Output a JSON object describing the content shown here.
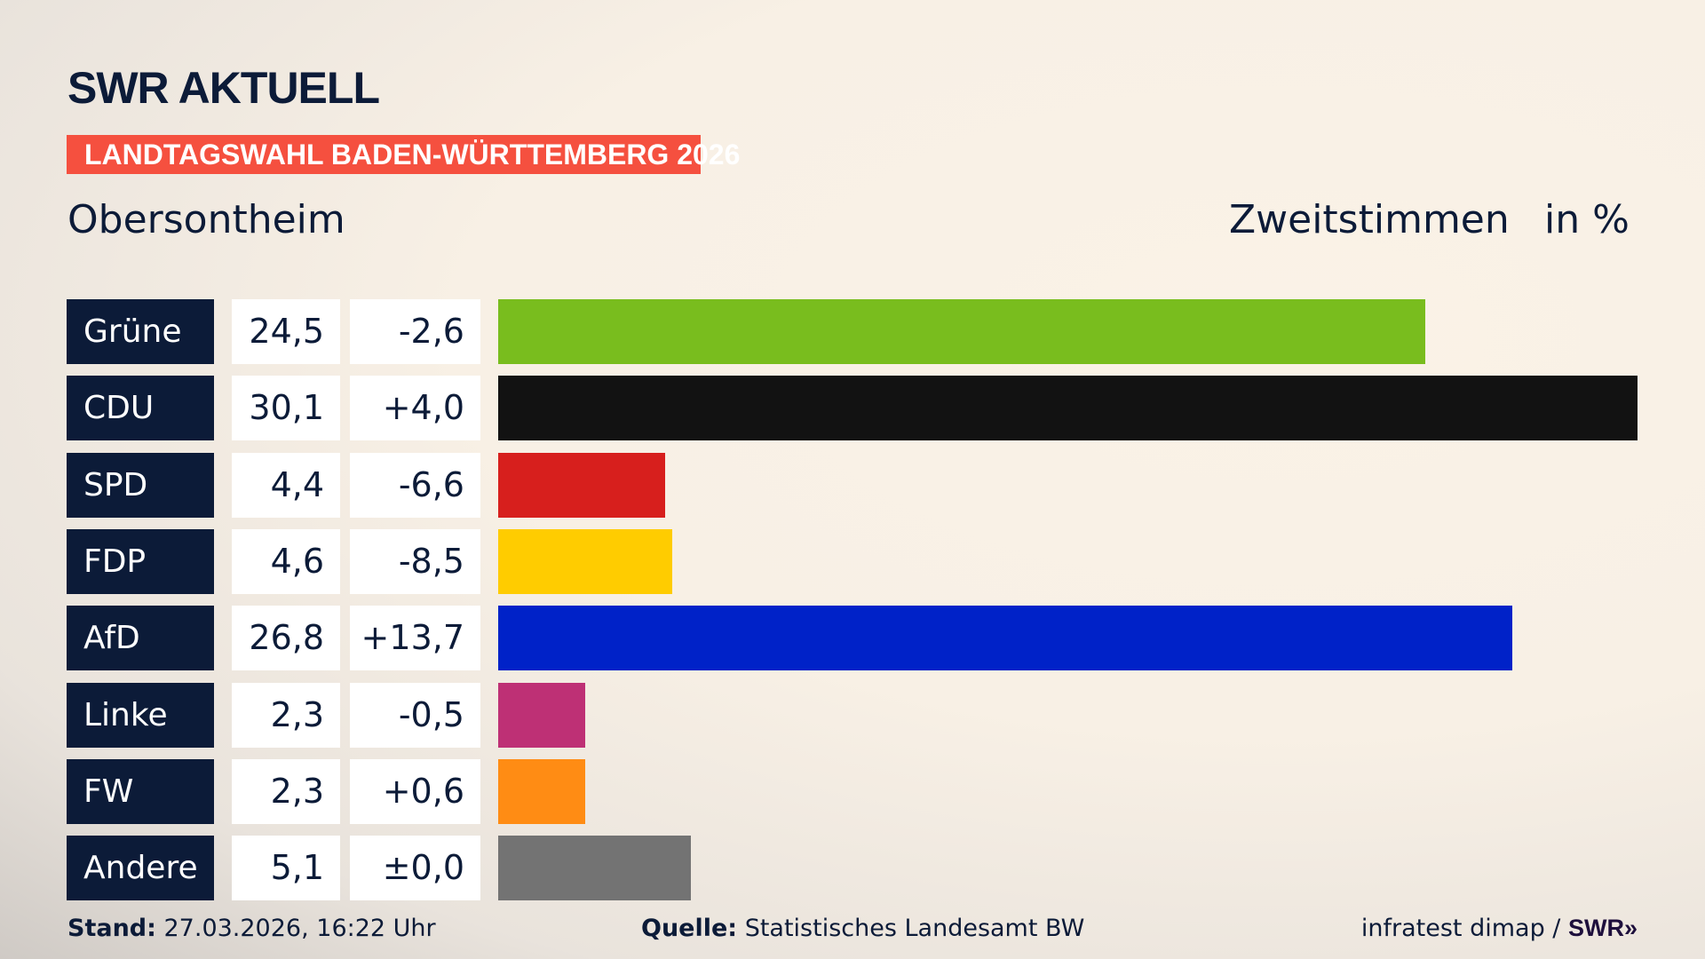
{
  "header": {
    "logo": "SWR AKTUELL",
    "banner": "LANDTAGSWAHL BADEN-WÜRTTEMBERG 2026",
    "region": "Obersontheim",
    "vote_type": "Zweitstimmen",
    "unit": "in %"
  },
  "chart_data": {
    "type": "bar",
    "orientation": "horizontal",
    "categories": [
      "Grüne",
      "CDU",
      "SPD",
      "FDP",
      "AfD",
      "Linke",
      "FW",
      "Andere"
    ],
    "values": [
      24.5,
      30.1,
      4.4,
      4.6,
      26.8,
      2.3,
      2.3,
      5.1
    ],
    "value_labels": [
      "24,5",
      "30,1",
      "4,4",
      "4,6",
      "26,8",
      "2,3",
      "2,3",
      "5,1"
    ],
    "change_labels": [
      "-2,6",
      "+4,0",
      "-6,6",
      "-8,5",
      "+13,7",
      "-0,5",
      "+0,6",
      "±0,0"
    ],
    "changes": [
      -2.6,
      4.0,
      -6.6,
      -8.5,
      13.7,
      -0.5,
      0.6,
      0.0
    ],
    "colors": [
      "#79bd1e",
      "#121212",
      "#d71f1d",
      "#ffcc00",
      "#0022c8",
      "#be3075",
      "#ff8c14",
      "#737373"
    ],
    "xlim": [
      0,
      30.1
    ],
    "grid": false
  },
  "footer": {
    "stand_label": "Stand:",
    "stand_value": " 27.03.2026, 16:22 Uhr",
    "source_label": "Quelle:",
    "source_value": " Statistisches Landesamt BW",
    "credit": "infratest dimap / ",
    "credit_logo": "SWR»"
  }
}
